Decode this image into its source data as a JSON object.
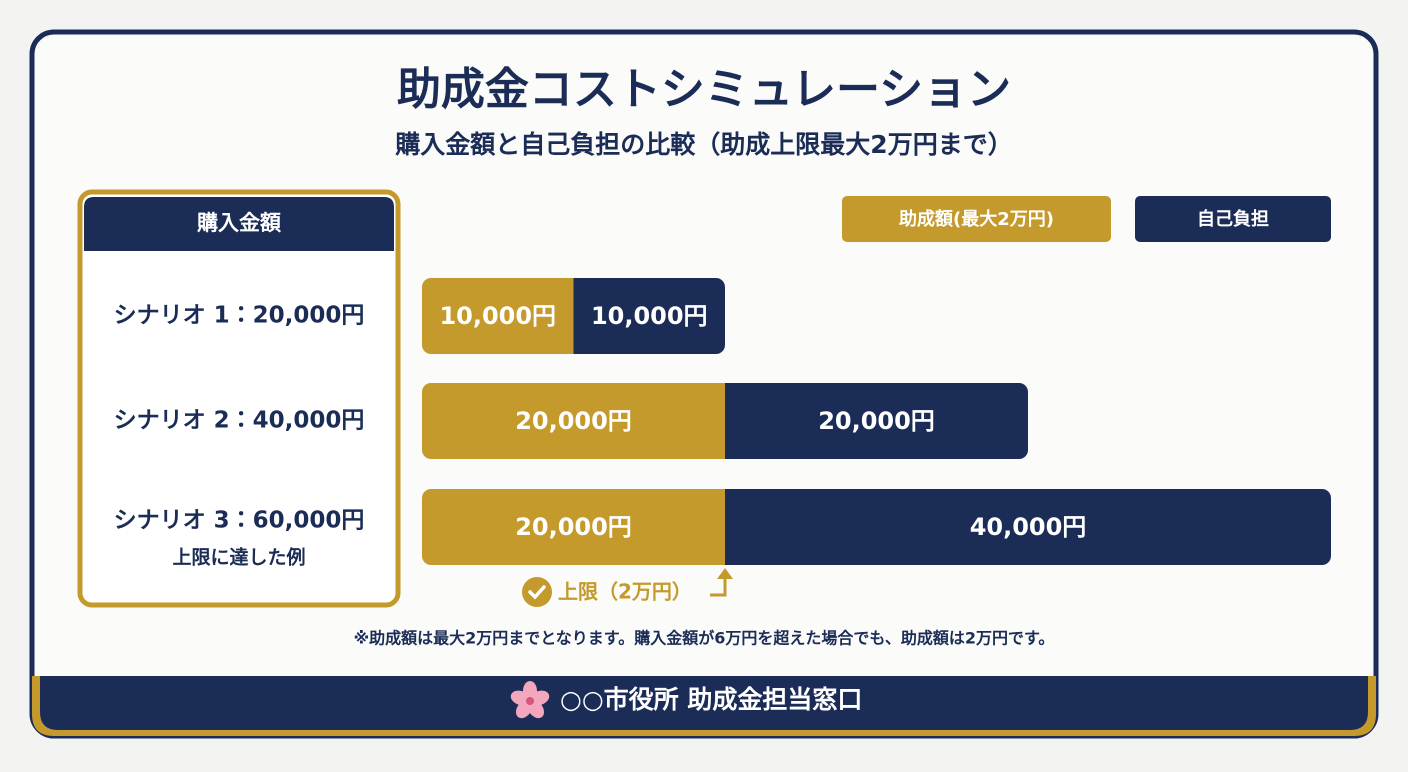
{
  "chart_data": {
    "type": "stacked-bar",
    "title": "助成金コストシミュレーション",
    "subtitle": "購入金額と自己負担の比較（助成上限最大2万円まで）",
    "category_header": "購入金額",
    "categories": [
      "シナリオ 1：20,000円",
      "シナリオ 2：40,000円",
      "シナリオ 3：60,000円"
    ],
    "category_subtitles": [
      null,
      null,
      "上限に達した例"
    ],
    "series": [
      {
        "name": "助成額(最大2万円)",
        "color": "#c49a2c",
        "values": [
          10000,
          20000,
          20000
        ],
        "value_labels": [
          "10,000円",
          "20,000円",
          "20,000円"
        ]
      },
      {
        "name": "自己負担",
        "color": "#1b2d57",
        "values": [
          10000,
          20000,
          40000
        ],
        "value_labels": [
          "10,000円",
          "20,000円",
          "40,000円"
        ]
      }
    ],
    "cap": {
      "value": 20000,
      "label": "上限（2万円）"
    },
    "note": "※助成額は最大2万円までとなります。購入金額が6万円を超えた場合でも、助成額は2万円です。"
  },
  "footer": "○○市役所 助成金担当窓口"
}
